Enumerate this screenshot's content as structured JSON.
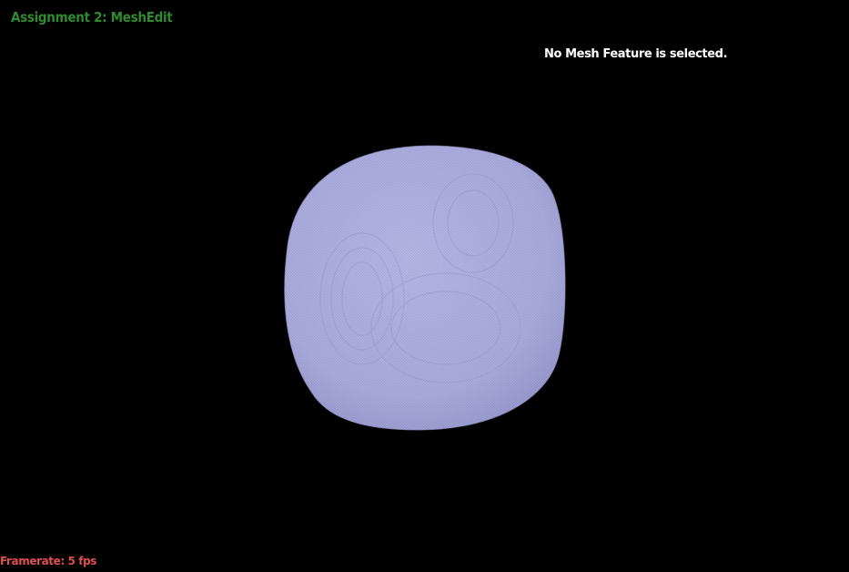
{
  "app": {
    "title": "Assignment 2: MeshEdit",
    "title_color": "#2e8b2e"
  },
  "selection": {
    "status": "No Mesh Feature is selected.",
    "color": "#ffffff"
  },
  "stats": {
    "framerate_label": "Framerate: 5 fps",
    "color": "#e05050"
  },
  "viewport": {
    "background": "#000000",
    "mesh_fill": "#a8a8d8",
    "mesh_wire": "#7070c8"
  }
}
